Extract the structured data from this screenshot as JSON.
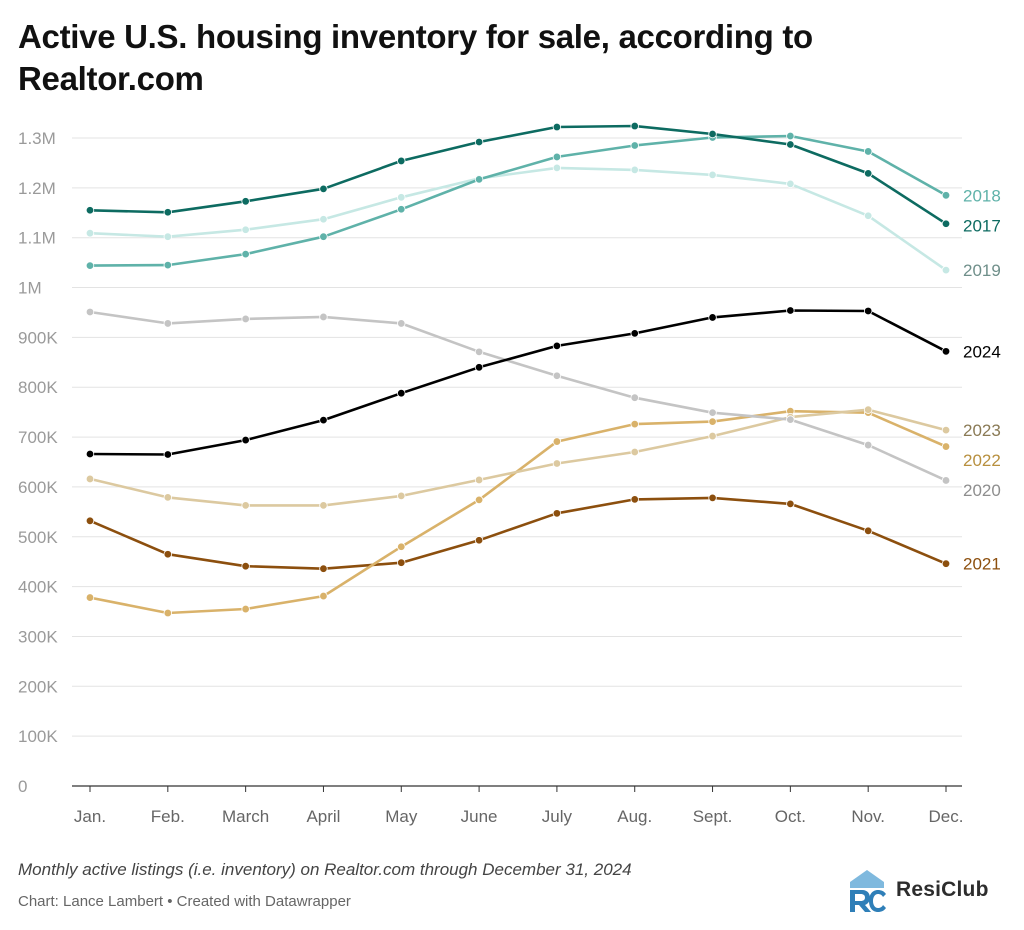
{
  "title": "Active U.S. housing inventory for sale, according to Realtor.com",
  "footnote": "Monthly active listings (i.e. inventory) on Realtor.com through December 31, 2024",
  "credit": "Chart: Lance Lambert • Created with Datawrapper",
  "brand": {
    "name": "ResiClub",
    "icon": "resiclub-logo-icon",
    "colors": [
      "#2f7fb8",
      "#7fb9de"
    ]
  },
  "chart_data": {
    "type": "line",
    "categories": [
      "Jan.",
      "Feb.",
      "March",
      "April",
      "May",
      "June",
      "July",
      "Aug.",
      "Sept.",
      "Oct.",
      "Nov.",
      "Dec."
    ],
    "ylim": [
      0,
      1300000
    ],
    "yticks": [
      0,
      100000,
      200000,
      300000,
      400000,
      500000,
      600000,
      700000,
      800000,
      900000,
      1000000,
      1100000,
      1200000,
      1300000
    ],
    "ytick_labels": [
      "0",
      "100K",
      "200K",
      "300K",
      "400K",
      "500K",
      "600K",
      "700K",
      "800K",
      "900K",
      "1M",
      "1.1M",
      "1.2M",
      "1.3M"
    ],
    "grid": true,
    "legend": "direct labels at right end of lines",
    "series": [
      {
        "name": "2021",
        "color": "#8c4f0e",
        "values": [
          532000,
          465000,
          441000,
          436000,
          448000,
          493000,
          547000,
          575000,
          578000,
          566000,
          512000,
          446000
        ]
      },
      {
        "name": "2022",
        "color": "#d9b26a",
        "values": [
          378000,
          347000,
          355000,
          381000,
          480000,
          574000,
          691000,
          726000,
          731000,
          752000,
          749000,
          681000
        ]
      },
      {
        "name": "2023",
        "color": "#dcc9a0",
        "values": [
          616000,
          579000,
          563000,
          563000,
          582000,
          614000,
          647000,
          670000,
          702000,
          740000,
          755000,
          714000
        ]
      },
      {
        "name": "2020",
        "color": "#c4c4c4",
        "values": [
          951000,
          928000,
          937000,
          941000,
          928000,
          871000,
          823000,
          779000,
          749000,
          735000,
          684000,
          613000
        ]
      },
      {
        "name": "2019",
        "color": "#c6e8e4",
        "values": [
          1109000,
          1102000,
          1116000,
          1137000,
          1181000,
          1219000,
          1240000,
          1236000,
          1226000,
          1208000,
          1144000,
          1035000
        ]
      },
      {
        "name": "2018",
        "color": "#5fb2a9",
        "values": [
          1044000,
          1045000,
          1067000,
          1102000,
          1157000,
          1217000,
          1262000,
          1285000,
          1301000,
          1304000,
          1273000,
          1185000
        ]
      },
      {
        "name": "2017",
        "color": "#0d6b61",
        "values": [
          1155000,
          1151000,
          1173000,
          1198000,
          1254000,
          1292000,
          1322000,
          1324000,
          1308000,
          1287000,
          1229000,
          1128000
        ]
      },
      {
        "name": "2024",
        "color": "#000000",
        "values": [
          666000,
          665000,
          694000,
          734000,
          788000,
          840000,
          883000,
          908000,
          940000,
          954000,
          953000,
          872000
        ]
      }
    ]
  }
}
